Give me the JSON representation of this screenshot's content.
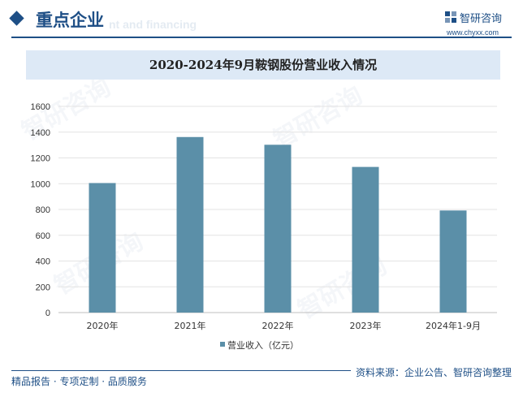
{
  "header": {
    "section_title": "重点企业",
    "bg_text": "nt and financing",
    "logo_name": "智研咨询",
    "logo_url": "www.chyxx.com"
  },
  "watermark": "智研咨询",
  "footer": {
    "left": "精品报告 · 专项定制 · 品质服务",
    "source": "资料来源：企业公告、智研咨询整理"
  },
  "colors": {
    "bar": "#5b8fa8",
    "brand": "#1e4f86",
    "title_band": "#dde9f6"
  },
  "chart_data": {
    "type": "bar",
    "title": "2020-2024年9月鞍钢股份营业收入情况",
    "categories": [
      "2020年",
      "2021年",
      "2022年",
      "2023年",
      "2024年1-9月"
    ],
    "series": [
      {
        "name": "营业收入（亿元）",
        "values": [
          1005,
          1362,
          1302,
          1130,
          792
        ]
      }
    ],
    "ylim": [
      0,
      1600
    ],
    "yticks": [
      0,
      200,
      400,
      600,
      800,
      1000,
      1200,
      1400,
      1600
    ],
    "grid": true,
    "legend_position": "bottom"
  }
}
